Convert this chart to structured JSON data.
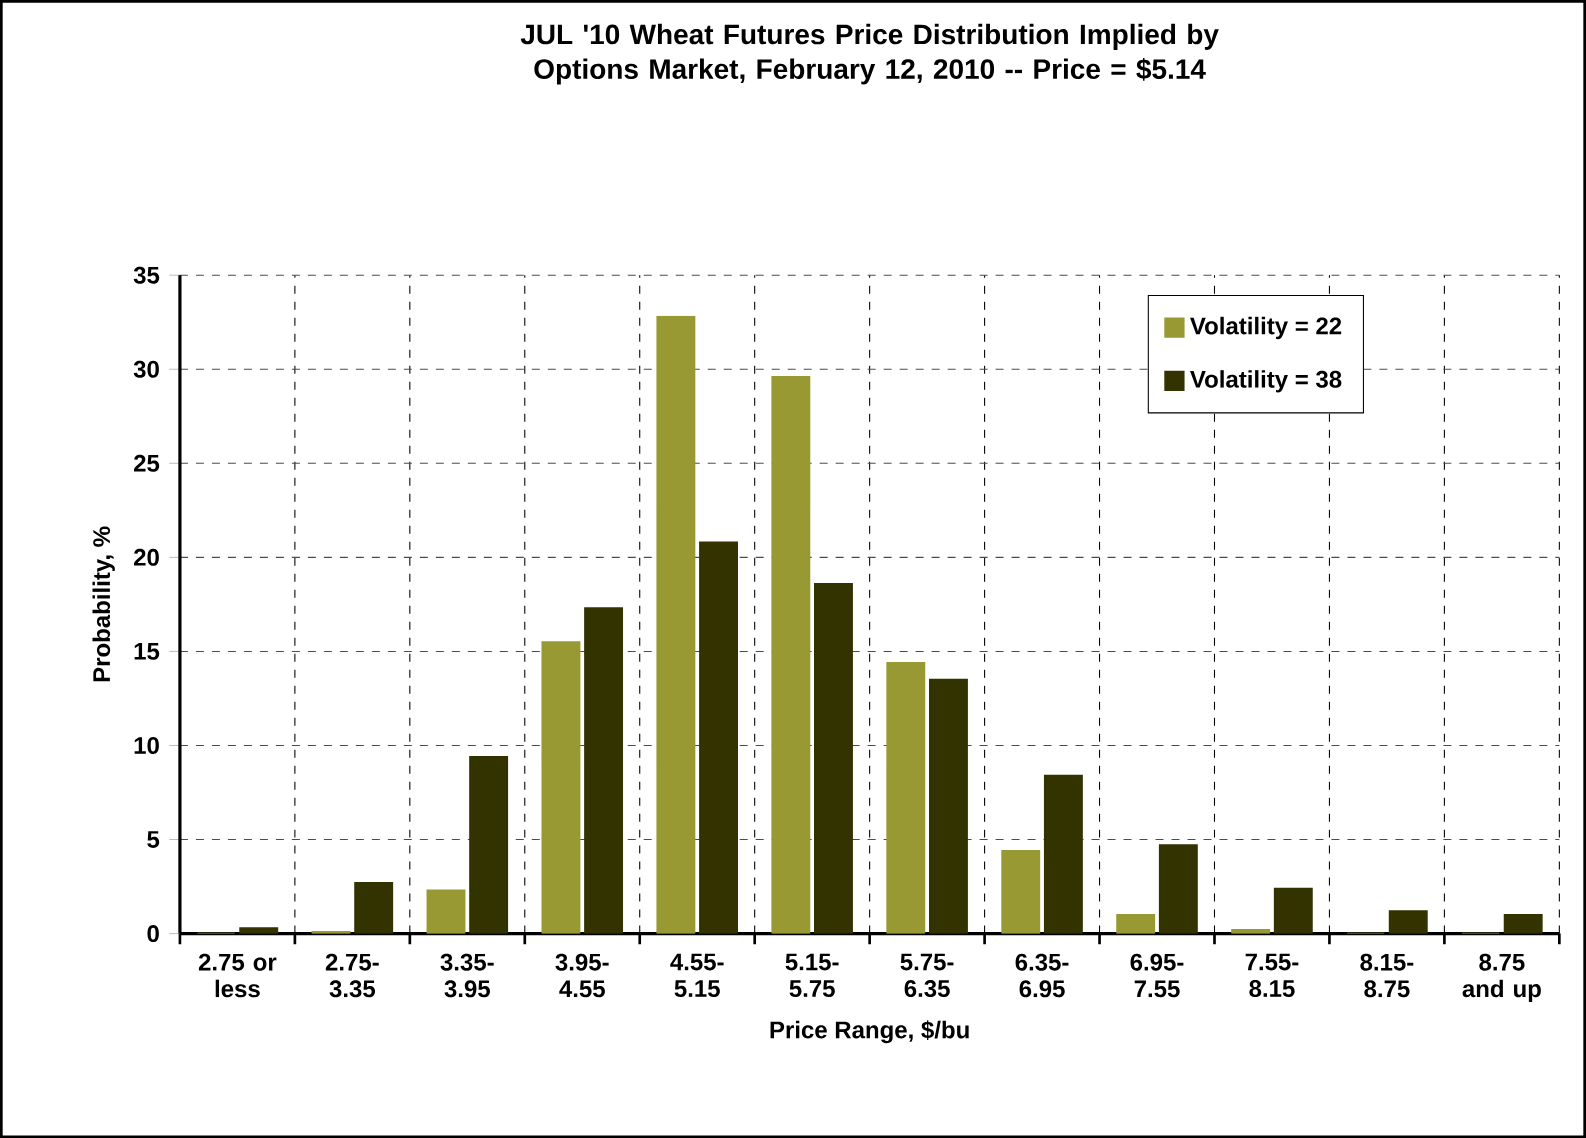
{
  "chart_data": {
    "type": "bar",
    "title": "JUL '10 Wheat Futures Price Distribution Implied by Options Market, February 12, 2010 -- Price = $5.14",
    "xlabel": "Price Range, $/bu",
    "ylabel": "Probability, %",
    "categories": [
      "2.75 or less",
      "2.75-3.35",
      "3.35-3.95",
      "3.95-4.55",
      "4.55-5.15",
      "5.15-5.75",
      "5.75-6.35",
      "6.35-6.95",
      "6.95-7.55",
      "7.55-8.15",
      "8.15-8.75",
      "8.75 and up"
    ],
    "series": [
      {
        "name": "Volatility = 22",
        "color": "#999933",
        "values": [
          0,
          0.1,
          2.3,
          15.5,
          32.8,
          29.6,
          14.4,
          4.4,
          1.0,
          0.2,
          0,
          0
        ]
      },
      {
        "name": "Volatility = 38",
        "color": "#333300",
        "values": [
          0.3,
          2.7,
          9.4,
          17.3,
          20.8,
          18.6,
          13.5,
          8.4,
          4.7,
          2.4,
          1.2,
          1.0
        ]
      }
    ],
    "ylim": [
      0,
      35
    ],
    "yticks": [
      0,
      5,
      10,
      15,
      20,
      25,
      30,
      35
    ],
    "grid": true,
    "legend": "top right"
  }
}
